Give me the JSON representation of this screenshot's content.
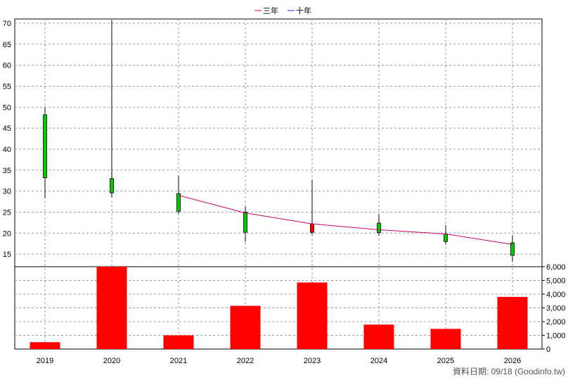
{
  "chart_data": {
    "type": "candlestick+bar",
    "legend": {
      "placement": "top-center",
      "items": [
        {
          "name": "三年",
          "color": "#cc0066"
        },
        {
          "name": "十年",
          "color": "#6600cc"
        }
      ]
    },
    "categories": [
      "2019",
      "2020",
      "2021",
      "2022",
      "2023",
      "2024",
      "2025",
      "2026"
    ],
    "price_panel": {
      "ylim": [
        12,
        71
      ],
      "ticks": [
        15,
        20,
        25,
        30,
        35,
        40,
        45,
        50,
        55,
        60,
        65,
        70
      ],
      "grid": true,
      "candles": [
        {
          "year": "2019",
          "open": 48.2,
          "high": 50.0,
          "low": 28.3,
          "close": 33.2,
          "color": "green"
        },
        {
          "year": "2020",
          "open": 33.0,
          "high": 70.7,
          "low": 28.6,
          "close": 29.6,
          "color": "green"
        },
        {
          "year": "2021",
          "open": 29.4,
          "high": 33.7,
          "low": 24.5,
          "close": 25.2,
          "color": "green"
        },
        {
          "year": "2022",
          "open": 25.0,
          "high": 26.3,
          "low": 17.9,
          "close": 20.2,
          "color": "green"
        },
        {
          "year": "2023",
          "open": 20.2,
          "high": 32.7,
          "low": 19.6,
          "close": 22.2,
          "color": "red"
        },
        {
          "year": "2024",
          "open": 22.4,
          "high": 24.5,
          "low": 19.5,
          "close": 20.1,
          "color": "green"
        },
        {
          "year": "2025",
          "open": 19.8,
          "high": 21.9,
          "low": 17.4,
          "close": 18.0,
          "color": "green"
        },
        {
          "year": "2026",
          "open": 17.7,
          "high": 19.4,
          "low": 13.2,
          "close": 14.7,
          "color": "green"
        }
      ],
      "series": [
        {
          "name": "三年",
          "color": "#cc0066",
          "points": [
            [
              "2021",
              29.0
            ],
            [
              "2022",
              24.8
            ],
            [
              "2023",
              22.2
            ],
            [
              "2024",
              20.8
            ],
            [
              "2025",
              19.8
            ],
            [
              "2026",
              17.3
            ]
          ]
        }
      ]
    },
    "volume_panel": {
      "ylim": [
        0,
        6000
      ],
      "ticks": [
        "0",
        "1,000",
        "2,000",
        "3,000",
        "4,000",
        "5,000",
        "6,000"
      ],
      "tick_values": [
        0,
        1000,
        2000,
        3000,
        4000,
        5000,
        6000
      ],
      "bar_color": "#ff0000",
      "values": [
        500,
        6000,
        1000,
        3150,
        4850,
        1780,
        1470,
        3800
      ]
    }
  },
  "footer": "資料日期: 09/18  (Goodinfo.tw)"
}
